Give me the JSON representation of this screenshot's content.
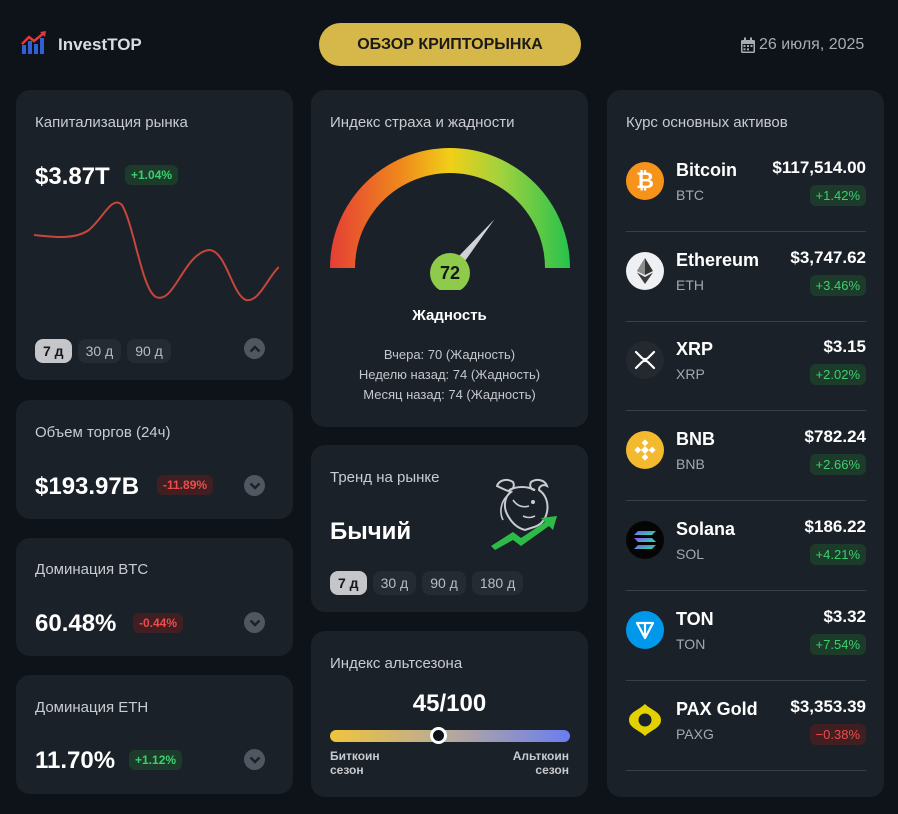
{
  "header": {
    "brand": "InvestTOP",
    "title_button": "ОБЗОР КРИПТОРЫНКА",
    "date": "26 июля, 2025"
  },
  "market_cap": {
    "title": "Капитализация рынка",
    "value": "$3.87T",
    "change": "+1.04%",
    "periods": [
      "7 д",
      "30 д",
      "90 д"
    ],
    "active_period": "7 д"
  },
  "volume": {
    "title": "Объем торгов (24ч)",
    "value": "$193.97B",
    "change": "-11.89%"
  },
  "btc_dominance": {
    "title": "Доминация BTC",
    "value": "60.48%",
    "change": "-0.44%"
  },
  "eth_dominance": {
    "title": "Доминация ETH",
    "value": "11.70%",
    "change": "+1.12%"
  },
  "fear_greed": {
    "title": "Индекс страха и жадности",
    "value": "72",
    "level": 0.72,
    "label": "Жадность",
    "yesterday": "Вчера: 70 (Жадность)",
    "week_ago": "Неделю назад: 74 (Жадность)",
    "month_ago": "Месяц назад: 74 (Жадность)"
  },
  "trend": {
    "title": "Тренд на рынке",
    "value": "Бычий",
    "periods": [
      "7 д",
      "30 д",
      "90 д",
      "180 д"
    ],
    "active_period": "7 д"
  },
  "altseason": {
    "title": "Индекс альтсезона",
    "value": "45/100",
    "level": 0.45,
    "left_label_1": "Биткоин",
    "left_label_2": "сезон",
    "right_label_1": "Альткоин",
    "right_label_2": "сезон"
  },
  "assets": {
    "title": "Курс основных активов",
    "items": [
      {
        "name": "Bitcoin",
        "symbol": "BTC",
        "price": "$117,514.00",
        "change": "+1.42%",
        "dir": "up",
        "icon": "bitcoin-icon"
      },
      {
        "name": "Ethereum",
        "symbol": "ETH",
        "price": "$3,747.62",
        "change": "+3.46%",
        "dir": "up",
        "icon": "ethereum-icon"
      },
      {
        "name": "XRP",
        "symbol": "XRP",
        "price": "$3.15",
        "change": "+2.02%",
        "dir": "up",
        "icon": "xrp-icon"
      },
      {
        "name": "BNB",
        "symbol": "BNB",
        "price": "$782.24",
        "change": "+2.66%",
        "dir": "up",
        "icon": "bnb-icon"
      },
      {
        "name": "Solana",
        "symbol": "SOL",
        "price": "$186.22",
        "change": "+4.21%",
        "dir": "up",
        "icon": "solana-icon"
      },
      {
        "name": "TON",
        "symbol": "TON",
        "price": "$3.32",
        "change": "+7.54%",
        "dir": "up",
        "icon": "ton-icon"
      },
      {
        "name": "PAX Gold",
        "symbol": "PAXG",
        "price": "$3,353.39",
        "change": "−0.38%",
        "dir": "down",
        "icon": "pax-gold-icon"
      }
    ]
  },
  "colors": {
    "background": "#0e1319",
    "card": "#1b2128",
    "accent_gold": "#d6b84a",
    "positive": "#3ccf6e",
    "negative": "#ef4b4b",
    "sparkline": "#c4463c"
  }
}
